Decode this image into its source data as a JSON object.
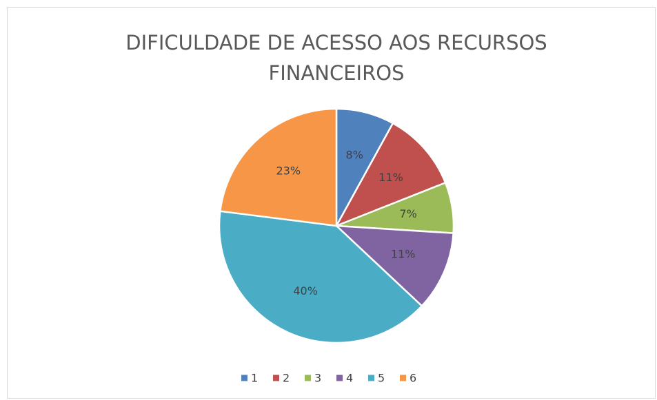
{
  "chart_data": {
    "type": "pie",
    "title": "DIFICULDADE DE ACESSO AOS RECURSOS FINANCEIROS",
    "categories": [
      "1",
      "2",
      "3",
      "4",
      "5",
      "6"
    ],
    "values": [
      8,
      11,
      7,
      11,
      40,
      23
    ],
    "value_labels": [
      "8%",
      "11%",
      "7%",
      "11%",
      "40%",
      "23%"
    ],
    "colors": [
      "#4f81bd",
      "#c0504d",
      "#9bbb59",
      "#8064a2",
      "#4bacc6",
      "#f79646"
    ],
    "legend": "bottom"
  }
}
